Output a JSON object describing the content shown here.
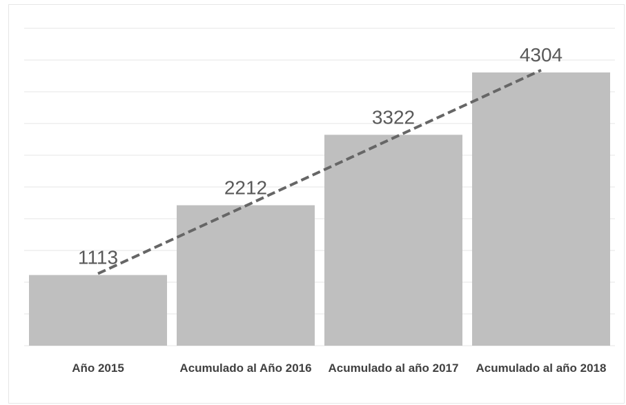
{
  "chart_data": {
    "type": "bar",
    "categories": [
      "Año 2015",
      "Acumulado al Año 2016",
      "Acumulado al año 2017",
      "Acumulado al año 2018"
    ],
    "values": [
      1113,
      2212,
      3322,
      4304
    ],
    "color": "#bfbfbf",
    "ylim": [
      0,
      5000
    ],
    "yticks": [
      0,
      500,
      1000,
      1500,
      2000,
      2500,
      3000,
      3500,
      4000,
      4500,
      5000
    ],
    "grid": true,
    "trendline": {
      "type": "linear",
      "color": "#666666",
      "dashed": true
    }
  }
}
